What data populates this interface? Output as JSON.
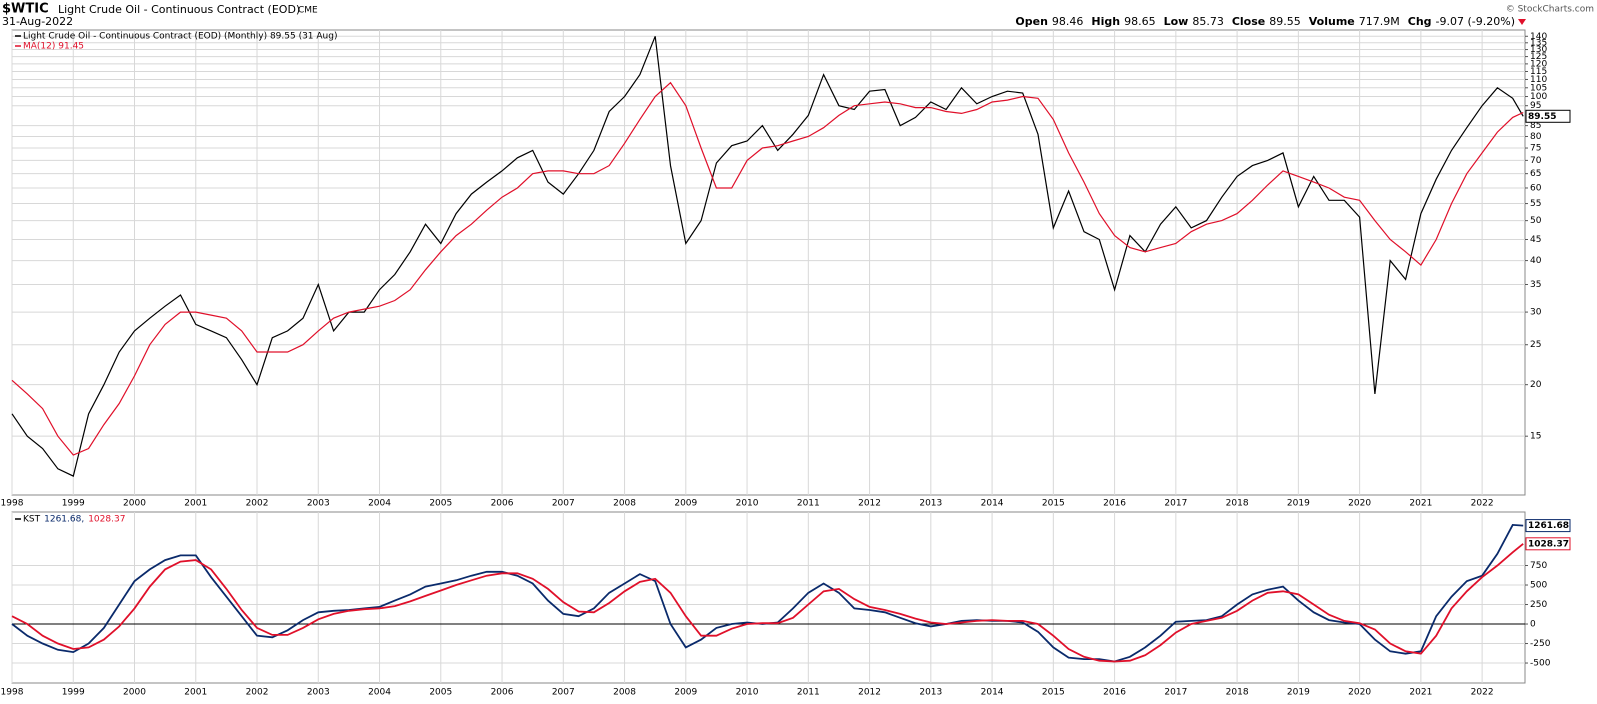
{
  "header": {
    "symbol": "$WTIC",
    "name": "Light Crude Oil - Continuous Contract (EOD)",
    "exchange": "CME",
    "date": "31-Aug-2022",
    "copyright": "© StockCharts.com",
    "quote": [
      [
        "Open",
        "98.46"
      ],
      [
        "High",
        "98.65"
      ],
      [
        "Low",
        "85.73"
      ],
      [
        "Close",
        "89.55"
      ],
      [
        "Volume",
        "717.9M"
      ],
      [
        "Chg",
        "-9.07 (-9.20%)"
      ]
    ]
  },
  "chart_data": [
    {
      "type": "line",
      "log_scale": true,
      "grid": true,
      "x": [
        1998,
        1998.25,
        1998.5,
        1998.75,
        1999,
        1999.25,
        1999.5,
        1999.75,
        2000,
        2000.25,
        2000.5,
        2000.75,
        2001,
        2001.25,
        2001.5,
        2001.75,
        2002,
        2002.25,
        2002.5,
        2002.75,
        2003,
        2003.25,
        2003.5,
        2003.75,
        2004,
        2004.25,
        2004.5,
        2004.75,
        2005,
        2005.25,
        2005.5,
        2005.75,
        2006,
        2006.25,
        2006.5,
        2006.75,
        2007,
        2007.25,
        2007.5,
        2007.75,
        2008,
        2008.25,
        2008.5,
        2008.75,
        2009,
        2009.25,
        2009.5,
        2009.75,
        2010,
        2010.25,
        2010.5,
        2010.75,
        2011,
        2011.25,
        2011.5,
        2011.75,
        2012,
        2012.25,
        2012.5,
        2012.75,
        2013,
        2013.25,
        2013.5,
        2013.75,
        2014,
        2014.25,
        2014.5,
        2014.75,
        2015,
        2015.25,
        2015.5,
        2015.75,
        2016,
        2016.25,
        2016.5,
        2016.75,
        2017,
        2017.25,
        2017.5,
        2017.75,
        2018,
        2018.25,
        2018.5,
        2018.75,
        2019,
        2019.25,
        2019.5,
        2019.75,
        2020,
        2020.25,
        2020.5,
        2020.75,
        2021,
        2021.25,
        2021.5,
        2021.75,
        2022,
        2022.25,
        2022.5,
        2022.67
      ],
      "series": [
        {
          "name": "Light Crude Oil - Continuous Contract (EOD) (Monthly) 89.55 (31 Aug)",
          "color": "#000000",
          "axis_label": "89.55",
          "values": [
            17,
            15,
            14,
            12.5,
            12,
            17,
            20,
            24,
            27,
            29,
            31,
            33,
            28,
            27,
            26,
            23,
            20,
            26,
            27,
            29,
            35,
            27,
            30,
            30,
            34,
            37,
            42,
            49,
            44,
            52,
            58,
            62,
            66,
            71,
            74,
            62,
            58,
            65,
            74,
            92,
            100,
            113,
            140,
            68,
            44,
            50,
            69,
            76,
            78,
            85,
            74,
            81,
            90,
            113,
            95,
            93,
            103,
            104,
            85,
            89,
            97,
            93,
            105,
            96,
            100,
            103,
            102,
            81,
            48,
            59,
            47,
            45,
            34,
            46,
            42,
            49,
            54,
            48,
            50,
            57,
            64,
            68,
            70,
            73,
            54,
            64,
            56,
            56,
            51,
            19,
            40,
            36,
            52,
            63,
            74,
            84,
            95,
            105,
            99,
            89.55
          ]
        },
        {
          "name": "MA(12) 91.45",
          "color": "#e0102a",
          "values": [
            20.5,
            19,
            17.5,
            15,
            13.5,
            14,
            16,
            18,
            21,
            25,
            28,
            30,
            30,
            29.5,
            29,
            27,
            24,
            24,
            24,
            25,
            27,
            29,
            30,
            30.5,
            31,
            32,
            34,
            38,
            42,
            46,
            49,
            53,
            57,
            60,
            65,
            66,
            66,
            65,
            65,
            68,
            77,
            88,
            100,
            108,
            95,
            75,
            60,
            60,
            70,
            75,
            76,
            78,
            80,
            84,
            90,
            95,
            96,
            97,
            96,
            94,
            94,
            92,
            91,
            93,
            97,
            98,
            100,
            99,
            88,
            73,
            62,
            52,
            46,
            43,
            42,
            43,
            44,
            47,
            49,
            50,
            52,
            56,
            61,
            66,
            64,
            62,
            60,
            57,
            56,
            50,
            45,
            42,
            39,
            45,
            55,
            65,
            73,
            82,
            89,
            91.45
          ]
        }
      ],
      "xlim": [
        1998,
        2022.7
      ],
      "xticks": [
        1998,
        1999,
        2000,
        2001,
        2002,
        2003,
        2004,
        2005,
        2006,
        2007,
        2008,
        2009,
        2010,
        2011,
        2012,
        2013,
        2014,
        2015,
        2016,
        2017,
        2018,
        2019,
        2020,
        2021,
        2022
      ],
      "ylim": [
        10.8,
        145
      ],
      "yticks": [
        15,
        20,
        25,
        30,
        35,
        40,
        45,
        50,
        55,
        60,
        65,
        70,
        75,
        80,
        85,
        95,
        100,
        105,
        110,
        115,
        120,
        125,
        130,
        135,
        140
      ]
    },
    {
      "type": "line",
      "log_scale": false,
      "grid": true,
      "title": "KST",
      "x": [
        1998,
        1998.25,
        1998.5,
        1998.75,
        1999,
        1999.25,
        1999.5,
        1999.75,
        2000,
        2000.25,
        2000.5,
        2000.75,
        2001,
        2001.25,
        2001.5,
        2001.75,
        2002,
        2002.25,
        2002.5,
        2002.75,
        2003,
        2003.25,
        2003.5,
        2003.75,
        2004,
        2004.25,
        2004.5,
        2004.75,
        2005,
        2005.25,
        2005.5,
        2005.75,
        2006,
        2006.25,
        2006.5,
        2006.75,
        2007,
        2007.25,
        2007.5,
        2007.75,
        2008,
        2008.25,
        2008.5,
        2008.75,
        2009,
        2009.25,
        2009.5,
        2009.75,
        2010,
        2010.25,
        2010.5,
        2010.75,
        2011,
        2011.25,
        2011.5,
        2011.75,
        2012,
        2012.25,
        2012.5,
        2012.75,
        2013,
        2013.25,
        2013.5,
        2013.75,
        2014,
        2014.25,
        2014.5,
        2014.75,
        2015,
        2015.25,
        2015.5,
        2015.75,
        2016,
        2016.25,
        2016.5,
        2016.75,
        2017,
        2017.25,
        2017.5,
        2017.75,
        2018,
        2018.25,
        2018.5,
        2018.75,
        2019,
        2019.25,
        2019.5,
        2019.75,
        2020,
        2020.25,
        2020.5,
        2020.75,
        2021,
        2021.25,
        2021.5,
        2021.75,
        2022,
        2022.25,
        2022.5,
        2022.67
      ],
      "series": [
        {
          "name": "1261.68,",
          "color": "#0a2a6b",
          "axis_label": "1261.68",
          "values": [
            0,
            -150,
            -250,
            -330,
            -360,
            -250,
            -50,
            250,
            550,
            700,
            820,
            880,
            880,
            600,
            350,
            100,
            -150,
            -170,
            -80,
            50,
            150,
            170,
            180,
            200,
            220,
            300,
            380,
            480,
            520,
            560,
            620,
            670,
            670,
            620,
            520,
            300,
            130,
            100,
            200,
            400,
            520,
            640,
            550,
            0,
            -300,
            -200,
            -50,
            0,
            20,
            0,
            20,
            200,
            400,
            520,
            400,
            200,
            180,
            150,
            80,
            10,
            -30,
            0,
            40,
            50,
            40,
            40,
            20,
            -100,
            -300,
            -430,
            -450,
            -450,
            -480,
            -420,
            -300,
            -150,
            30,
            40,
            50,
            100,
            250,
            380,
            440,
            480,
            300,
            150,
            50,
            20,
            0,
            -200,
            -350,
            -380,
            -350,
            100,
            350,
            550,
            620,
            900,
            1270,
            1261.68
          ]
        },
        {
          "name": "1028.37",
          "color": "#e0102a",
          "axis_label": "1028.37",
          "values": [
            100,
            0,
            -150,
            -250,
            -320,
            -300,
            -200,
            -30,
            200,
            480,
            700,
            800,
            820,
            700,
            450,
            180,
            -50,
            -140,
            -140,
            -50,
            60,
            130,
            170,
            190,
            200,
            230,
            290,
            360,
            430,
            500,
            560,
            620,
            650,
            650,
            580,
            450,
            280,
            160,
            150,
            270,
            420,
            540,
            580,
            400,
            100,
            -150,
            -150,
            -60,
            0,
            10,
            10,
            80,
            250,
            420,
            450,
            320,
            220,
            180,
            130,
            70,
            20,
            0,
            20,
            40,
            50,
            40,
            40,
            0,
            -150,
            -320,
            -420,
            -470,
            -480,
            -470,
            -400,
            -270,
            -110,
            0,
            40,
            80,
            170,
            300,
            400,
            420,
            380,
            250,
            120,
            40,
            10,
            -70,
            -250,
            -350,
            -380,
            -150,
            200,
            420,
            600,
            750,
            920,
            1028.37
          ]
        }
      ],
      "xlim": [
        1998,
        2022.7
      ],
      "xticks": [
        1998,
        1999,
        2000,
        2001,
        2002,
        2003,
        2004,
        2005,
        2006,
        2007,
        2008,
        2009,
        2010,
        2011,
        2012,
        2013,
        2014,
        2015,
        2016,
        2017,
        2018,
        2019,
        2020,
        2021,
        2022
      ],
      "ylim": [
        -756,
        1436
      ],
      "yticks": [
        -500,
        -250,
        0,
        250,
        500,
        750
      ]
    }
  ]
}
